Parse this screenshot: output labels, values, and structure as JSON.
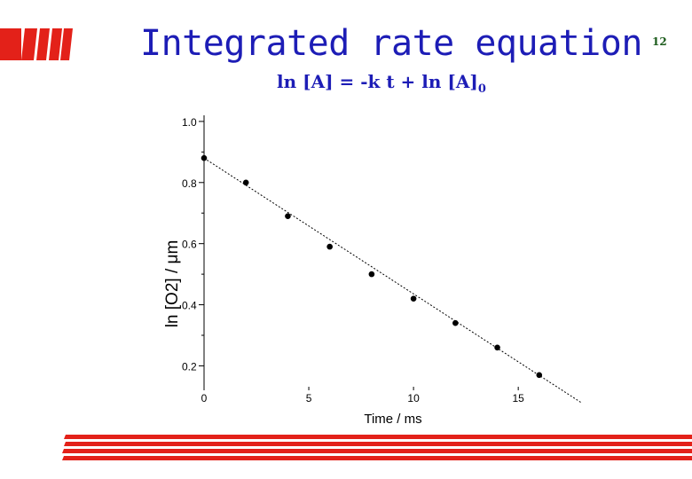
{
  "slide": {
    "title": "Integrated rate equation",
    "equation": {
      "main": "ln [A] = -k t + ln [A]",
      "subscript": "0"
    },
    "page_number": "12",
    "colors": {
      "title": "#1d1db6",
      "accent_bars": "#e32119",
      "page_number": "#1a5a1a"
    }
  },
  "chart_data": {
    "type": "scatter",
    "xlabel": "Time / ms",
    "ylabel": "ln [O2] / μm",
    "xlim": [
      0,
      18
    ],
    "ylim": [
      0.12,
      1.02
    ],
    "x_ticks": [
      0,
      5,
      10,
      15
    ],
    "x_tick_labels": [
      "0",
      "5",
      "10",
      "15"
    ],
    "y_ticks": [
      0.2,
      0.4,
      0.6,
      0.8,
      1.0
    ],
    "y_tick_labels": [
      "0.2",
      "0.4",
      "0.6",
      "0.8",
      "1.0"
    ],
    "grid": false,
    "series": [
      {
        "x": [
          0,
          2,
          4,
          6,
          8,
          10,
          12,
          14,
          16
        ],
        "y": [
          0.88,
          0.8,
          0.69,
          0.59,
          0.5,
          0.42,
          0.34,
          0.26,
          0.17
        ]
      }
    ],
    "fit_line": {
      "x": [
        0,
        18
      ],
      "y": [
        0.88,
        0.08
      ]
    }
  }
}
